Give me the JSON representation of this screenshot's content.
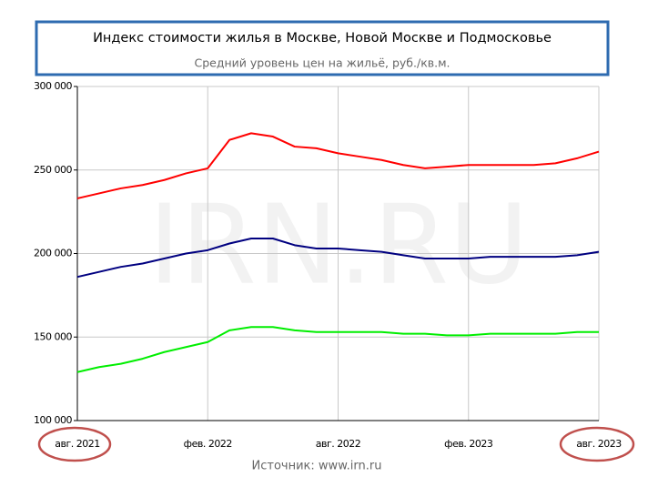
{
  "chart_data": {
    "type": "line",
    "title": "Индекс стоимости жилья в Москве, Новой Москве и Подмосковье",
    "subtitle": "Средний уровень цен на жильё, руб./кв.м.",
    "watermark": "IRN.RU",
    "source": "Источник: www.irn.ru",
    "categories": [
      "авг. 2021",
      null,
      null,
      null,
      null,
      null,
      "фев. 2022",
      null,
      null,
      null,
      null,
      null,
      "авг. 2022",
      null,
      null,
      null,
      null,
      null,
      "фев. 2023",
      null,
      null,
      null,
      null,
      null,
      "авг. 2023"
    ],
    "series": [
      {
        "color": "#ff0000",
        "values": [
          233000,
          236000,
          239000,
          241000,
          244000,
          248000,
          251000,
          268000,
          272000,
          270000,
          264000,
          263000,
          260000,
          258000,
          256000,
          253000,
          251000,
          252000,
          253000,
          253000,
          253000,
          253000,
          254000,
          257000,
          261000
        ]
      },
      {
        "color": "#000080",
        "values": [
          186000,
          189000,
          192000,
          194000,
          197000,
          200000,
          202000,
          206000,
          209000,
          209000,
          205000,
          203000,
          203000,
          202000,
          201000,
          199000,
          197000,
          197000,
          197000,
          198000,
          198000,
          198000,
          198000,
          199000,
          201000
        ]
      },
      {
        "color": "#00ee00",
        "values": [
          129000,
          132000,
          134000,
          137000,
          141000,
          144000,
          147000,
          154000,
          156000,
          156000,
          154000,
          153000,
          153000,
          153000,
          153000,
          152000,
          152000,
          151000,
          151000,
          152000,
          152000,
          152000,
          152000,
          153000,
          153000
        ]
      }
    ],
    "ylim": [
      100000,
      300000
    ],
    "yticks": [
      {
        "value": 100000,
        "label": "100 000"
      },
      {
        "value": 150000,
        "label": "150 000"
      },
      {
        "value": 200000,
        "label": "200 000"
      },
      {
        "value": 250000,
        "label": "250 000"
      },
      {
        "value": 300000,
        "label": "300 000"
      }
    ],
    "grid": true
  }
}
